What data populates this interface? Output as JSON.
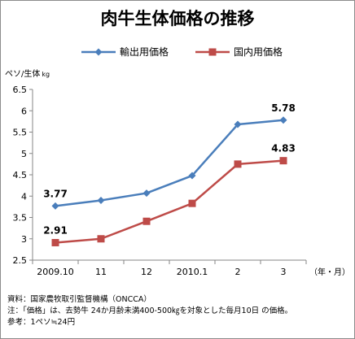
{
  "chart_data": {
    "type": "line",
    "title": "肉牛生体価格の推移",
    "ylabel": "ペソ/生体",
    "ylabel_unit": "kg",
    "xunit": "（年・月）",
    "categories": [
      "2009.10",
      "11",
      "12",
      "2010.1",
      "2",
      "3"
    ],
    "ylim": [
      2.5,
      6.5
    ],
    "yticks": [
      "2.5",
      "3",
      "3.5",
      "4",
      "4.5",
      "5",
      "5.5",
      "6",
      "6.5"
    ],
    "grid": false,
    "legend_position": "top",
    "series": [
      {
        "name": "輸出用価格",
        "values": [
          3.77,
          3.9,
          4.07,
          4.48,
          5.68,
          5.78
        ],
        "color": "#4a7ebb",
        "marker": "diamond"
      },
      {
        "name": "国内用価格",
        "values": [
          2.91,
          3.0,
          3.41,
          3.83,
          4.75,
          4.83
        ],
        "color": "#be4b48",
        "marker": "square"
      }
    ],
    "annotations": [
      {
        "series": 0,
        "index": 0,
        "text": "3.77"
      },
      {
        "series": 0,
        "index": 5,
        "text": "5.78"
      },
      {
        "series": 1,
        "index": 0,
        "text": "2.91"
      },
      {
        "series": 1,
        "index": 5,
        "text": "4.83"
      }
    ]
  },
  "notes": {
    "source": "資料：国家農牧取引監督機構（ONCCA）",
    "note": "注：「価格」は、去勢牛 24か月齢未満400-500㎏を対象とした毎月10日 の価格。",
    "reference": "参考：1ペソ≒24円"
  }
}
